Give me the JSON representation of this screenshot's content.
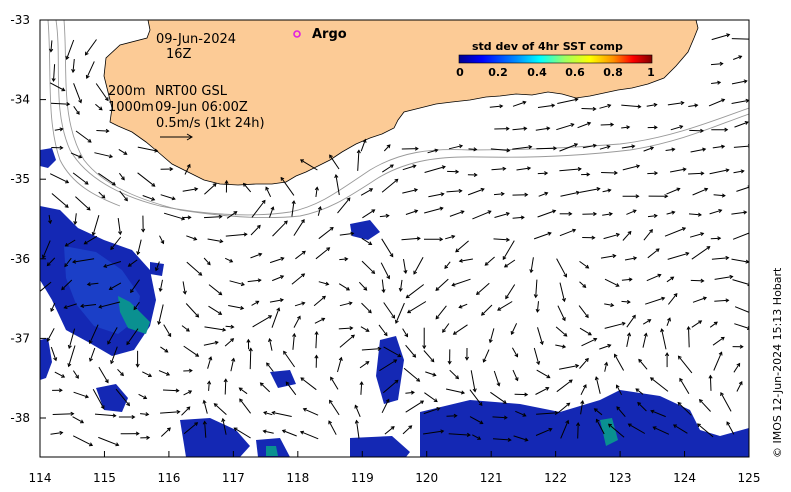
{
  "annotation": {
    "date": "09-Jun-2024",
    "hour": "16Z",
    "depth_top": "200m",
    "depth_bottom": "1000m",
    "product": "NRT00 GSL",
    "product_time": "09-Jun 06:00Z",
    "scale_label": "0.5m/s (1kt 24h)"
  },
  "legend": {
    "argo_label": "Argo",
    "argo_color": "#e020e0"
  },
  "colorbar": {
    "title": "std dev of 4hr SST comp",
    "ticks": [
      "0",
      "0.2",
      "0.4",
      "0.6",
      "0.8",
      "1"
    ],
    "colors": [
      "#00008f",
      "#0000ff",
      "#0080ff",
      "#00ffff",
      "#80ff80",
      "#ffff00",
      "#ff8000",
      "#ff0000",
      "#800000"
    ]
  },
  "axes": {
    "x_ticks": [
      "114",
      "115",
      "116",
      "117",
      "118",
      "119",
      "120",
      "121",
      "122",
      "123",
      "124",
      "125"
    ],
    "y_ticks": [
      "-33",
      "-34",
      "-35",
      "-36",
      "-37",
      "-38"
    ],
    "xlim": [
      114,
      125
    ],
    "ylim": [
      -38.5,
      -33
    ]
  },
  "credit": "© IMOS 12-Jun-2024 15:13 Hobart",
  "colors": {
    "land": "#fccb96",
    "patch_main": "#1428b4",
    "patch_alt": "#0a9090"
  }
}
